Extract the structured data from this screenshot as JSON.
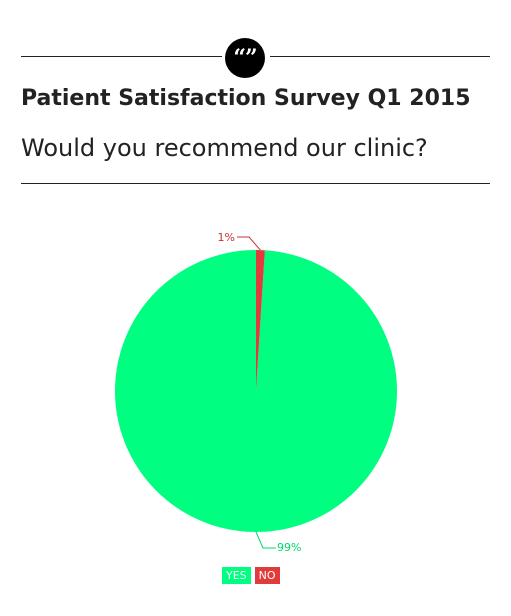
{
  "header": {
    "quote_icon": "quote-icon",
    "quote_glyph": "“”",
    "title": "Patient Satisfaction Survey Q1 2015",
    "subtitle": "Would you recommend our clinic?"
  },
  "chart_data": {
    "type": "pie",
    "title": "Patient Satisfaction Survey Q1 2015",
    "subtitle": "Would you recommend our clinic?",
    "categories": [
      "YES",
      "NO"
    ],
    "values": [
      99,
      1
    ],
    "labels": [
      "99%",
      "1%"
    ],
    "colors": [
      "#00ff80",
      "#e03c3c"
    ],
    "label_colors": [
      "#00d86c",
      "#c83232"
    ],
    "legend": "bottom-center"
  }
}
